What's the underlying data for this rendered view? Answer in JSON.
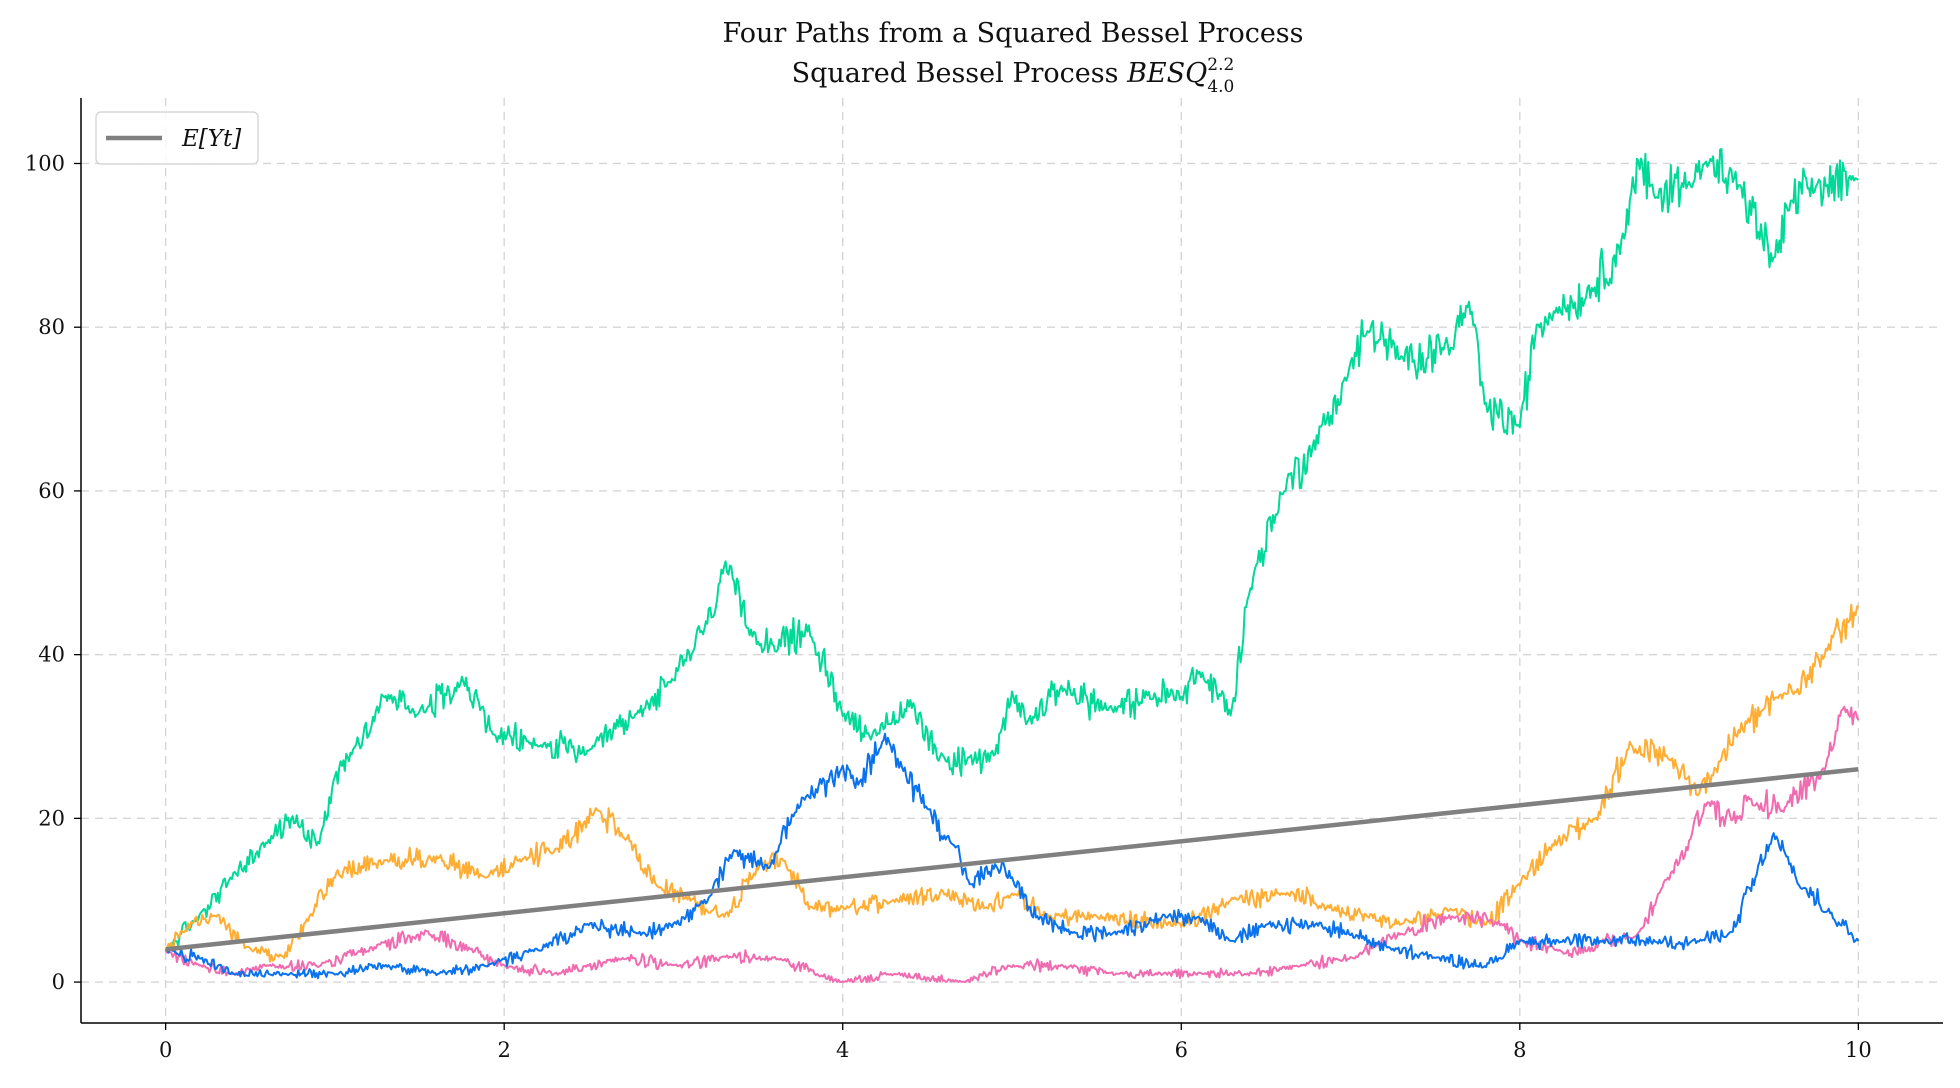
{
  "chart_data": {
    "type": "line",
    "title": "Four Paths from a Squared Bessel Process",
    "subtitle": {
      "prefix": "Squared Bessel Process ",
      "symbol": "BESQ",
      "superscript": "2.2",
      "subscript": "4.0"
    },
    "xlabel": "",
    "ylabel": "",
    "xlim": [
      -0.5,
      10.5
    ],
    "ylim": [
      -5,
      108
    ],
    "x_ticks": [
      "0",
      "2",
      "4",
      "6",
      "8",
      "10"
    ],
    "y_ticks": [
      "0",
      "20",
      "40",
      "60",
      "80",
      "100"
    ],
    "grid": true,
    "legend_position": "top-left",
    "legend": [
      {
        "label": "E[Y_t]",
        "label_display": "E[Yt]",
        "color": "#808080"
      }
    ],
    "expectation": {
      "name": "E[Y_t]",
      "color": "#808080",
      "x": [
        0,
        10
      ],
      "y": [
        4.0,
        26.0
      ]
    },
    "series": [
      {
        "color": "#00d997",
        "x": [
          0,
          0.2,
          0.4,
          0.6,
          0.75,
          0.9,
          1.0,
          1.1,
          1.3,
          1.5,
          1.75,
          1.95,
          2.2,
          2.5,
          2.8,
          3.0,
          3.2,
          3.3,
          3.45,
          3.6,
          3.8,
          4.0,
          4.2,
          4.4,
          4.6,
          4.75,
          4.9,
          5.0,
          5.1,
          5.3,
          5.6,
          5.8,
          6.0,
          6.1,
          6.3,
          6.4,
          6.6,
          6.8,
          7.0,
          7.1,
          7.3,
          7.6,
          7.7,
          7.8,
          8.0,
          8.1,
          8.2,
          8.4,
          8.6,
          8.7,
          8.8,
          9.0,
          9.1,
          9.3,
          9.5,
          9.6,
          9.7,
          10.0
        ],
        "y": [
          4,
          8,
          13,
          17,
          20,
          17,
          25,
          28,
          35,
          33,
          37,
          30,
          29,
          28,
          33,
          37,
          44,
          51,
          43,
          41,
          43,
          33,
          30,
          34,
          27,
          27,
          28,
          35,
          32,
          36,
          33,
          35,
          35,
          38,
          33,
          48,
          60,
          66,
          75,
          80,
          76,
          78,
          83,
          70,
          68,
          80,
          82,
          84,
          90,
          100,
          96,
          98,
          100,
          97,
          88,
          95,
          97,
          98
        ]
      },
      {
        "color": "#ffad33",
        "x": [
          0,
          0.15,
          0.3,
          0.5,
          0.7,
          0.85,
          1.0,
          1.3,
          1.6,
          1.9,
          2.1,
          2.3,
          2.55,
          2.75,
          2.9,
          3.1,
          3.3,
          3.5,
          3.65,
          3.8,
          4.0,
          4.3,
          4.6,
          4.85,
          5.0,
          5.2,
          5.5,
          6.0,
          6.3,
          6.6,
          6.9,
          7.1,
          7.3,
          7.6,
          7.8,
          8.0,
          8.2,
          8.45,
          8.65,
          8.9,
          9.05,
          9.3,
          9.55,
          9.8,
          10.0
        ],
        "y": [
          4,
          7,
          8,
          4,
          3,
          8,
          13,
          15,
          15,
          13,
          15,
          16,
          21,
          17,
          12,
          10,
          8,
          14,
          15,
          9,
          9,
          10,
          11,
          9,
          11,
          8,
          8,
          7,
          10,
          11,
          9,
          8,
          7,
          9,
          7,
          12,
          17,
          20,
          29,
          27,
          23,
          31,
          35,
          40,
          46
        ]
      },
      {
        "color": "#f06bb0",
        "x": [
          0,
          0.2,
          0.4,
          0.6,
          0.9,
          1.2,
          1.55,
          1.8,
          2.0,
          2.3,
          2.7,
          3.0,
          3.3,
          3.6,
          3.85,
          4.0,
          4.3,
          4.7,
          5.0,
          5.3,
          5.6,
          5.9,
          6.1,
          6.4,
          6.7,
          7.0,
          7.3,
          7.6,
          7.9,
          8.0,
          8.2,
          8.4,
          8.7,
          8.85,
          9.0,
          9.1,
          9.25,
          9.4,
          9.55,
          9.8,
          9.9,
          10.0
        ],
        "y": [
          4,
          2,
          1,
          2,
          2,
          4,
          6,
          4,
          2,
          1,
          3,
          2,
          3,
          3,
          1,
          0,
          1,
          0,
          2,
          2,
          1,
          1,
          1,
          1,
          2,
          3,
          6,
          8,
          7,
          5,
          4,
          4,
          6,
          12,
          17,
          22,
          20,
          22,
          21,
          26,
          33,
          32
        ]
      },
      {
        "color": "#0a72ed",
        "x": [
          0,
          0.2,
          0.4,
          0.7,
          1.0,
          1.3,
          1.6,
          1.9,
          2.2,
          2.5,
          2.8,
          3.0,
          3.2,
          3.35,
          3.55,
          3.75,
          4.0,
          4.1,
          4.25,
          4.35,
          4.5,
          4.65,
          4.75,
          4.9,
          5.0,
          5.15,
          5.35,
          5.6,
          5.9,
          6.1,
          6.3,
          6.5,
          6.8,
          7.0,
          7.25,
          7.5,
          7.8,
          8.0,
          8.25,
          8.5,
          8.8,
          9.05,
          9.25,
          9.5,
          9.65,
          9.85,
          10.0
        ],
        "y": [
          4,
          3,
          1,
          1,
          1,
          2,
          1,
          2,
          4,
          7,
          6,
          7,
          10,
          16,
          14,
          22,
          26,
          24,
          30,
          26,
          21,
          17,
          12,
          14,
          13,
          8,
          6,
          6,
          8,
          8,
          5,
          7,
          7,
          6,
          4,
          3,
          2,
          5,
          5,
          5,
          5,
          5,
          6,
          18,
          12,
          8,
          5
        ]
      }
    ]
  }
}
